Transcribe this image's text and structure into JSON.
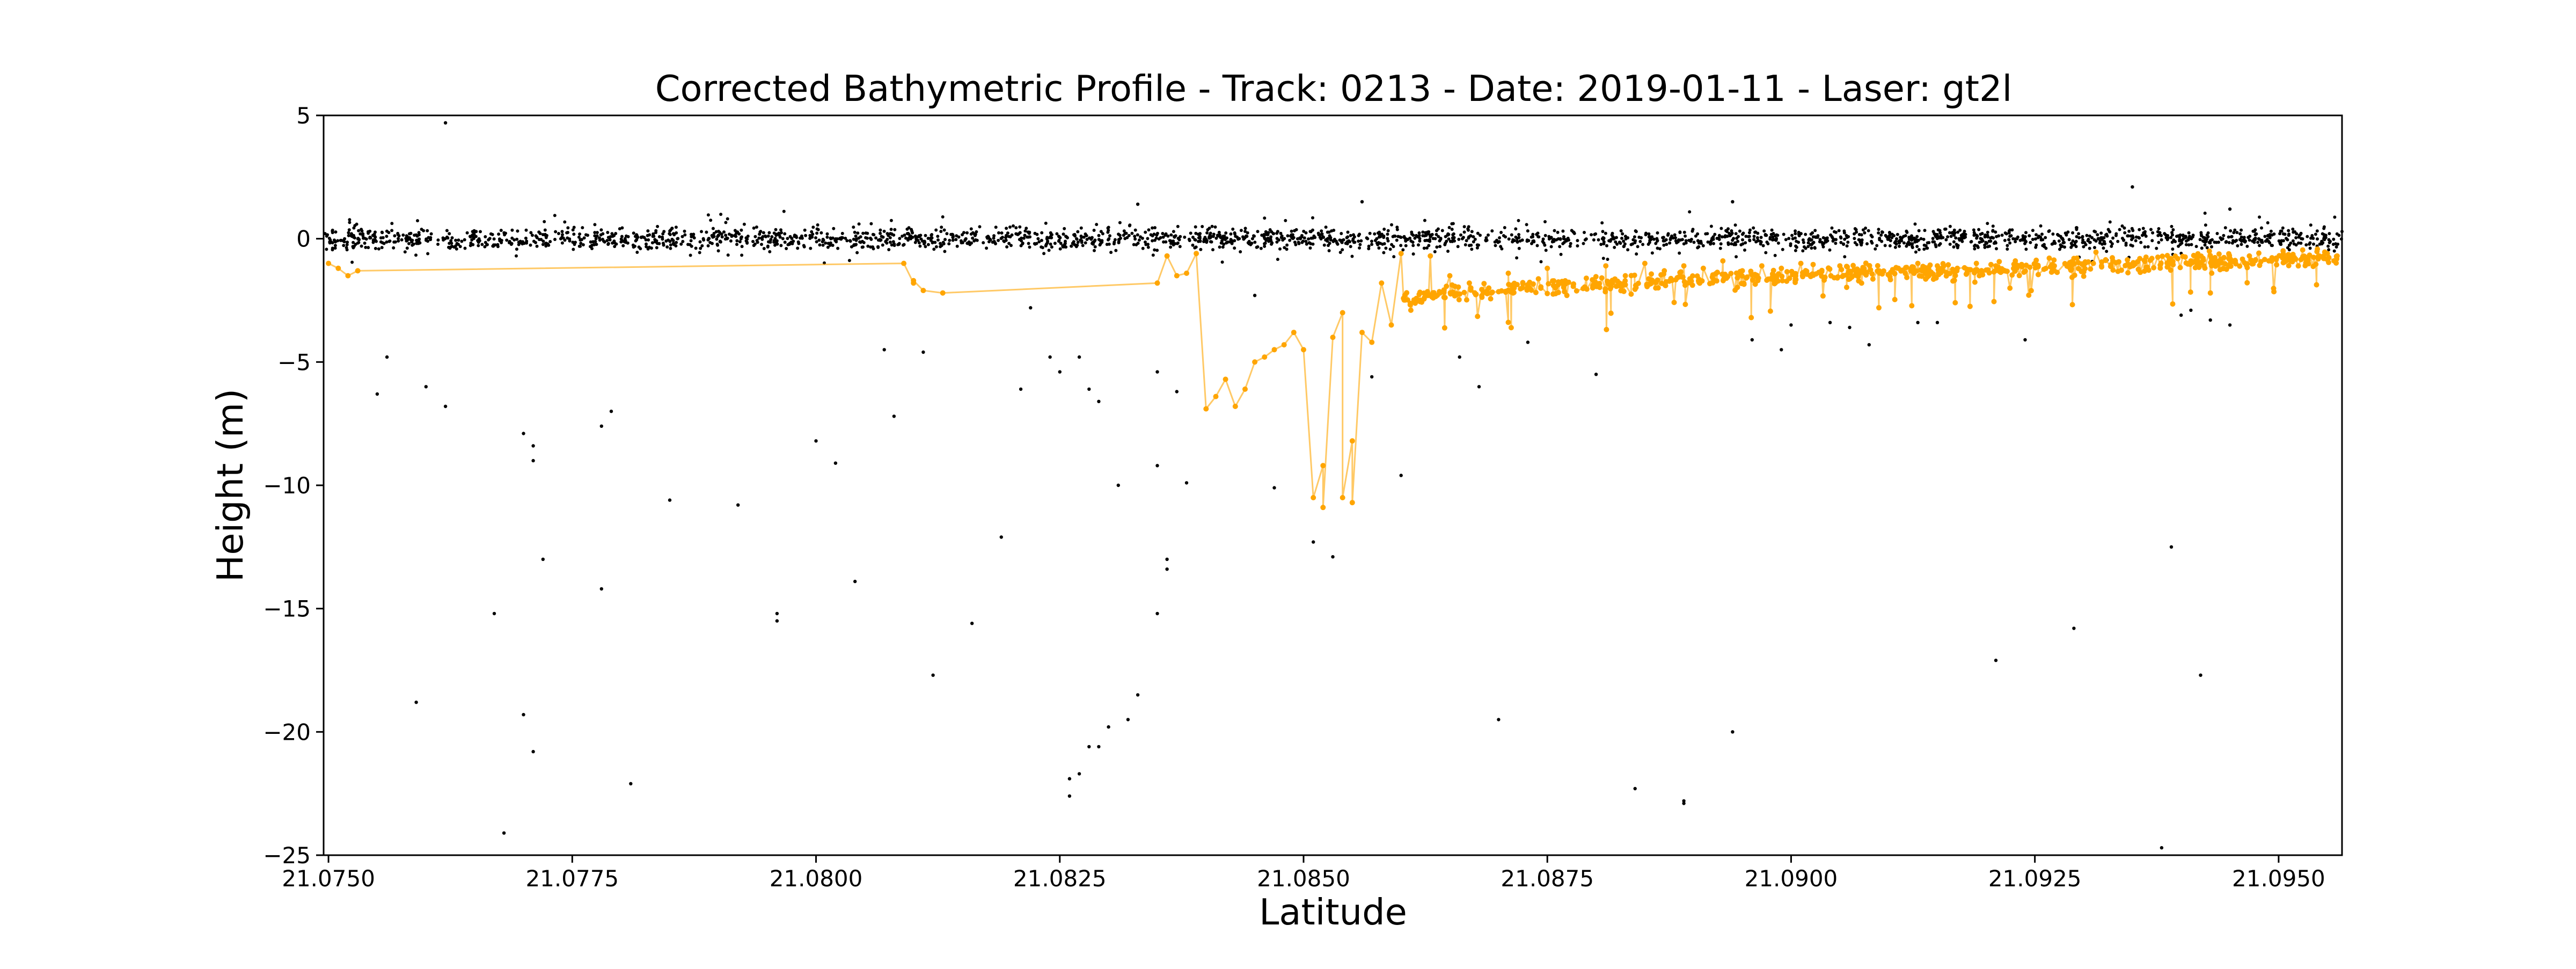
{
  "chart_data": {
    "type": "scatter",
    "title": "Corrected Bathymetric Profile - Track: 0213 - Date: 2019-01-11 - Laser: gt2l",
    "xlabel": "Latitude",
    "ylabel": "Height (m)",
    "xlim": [
      21.07495,
      21.09565
    ],
    "ylim": [
      -25,
      5
    ],
    "grid": false,
    "legend": "none",
    "x_ticks": [
      "21.0750",
      "21.0775",
      "21.0800",
      "21.0825",
      "21.0850",
      "21.0875",
      "21.0900",
      "21.0925",
      "21.0950"
    ],
    "x_tick_values": [
      21.075,
      21.0775,
      21.08,
      21.0825,
      21.085,
      21.0875,
      21.09,
      21.0925,
      21.095
    ],
    "y_ticks": [
      "5",
      "0",
      "−5",
      "−10",
      "−15",
      "−20",
      "−25"
    ],
    "y_tick_values": [
      5,
      0,
      -5,
      -10,
      -15,
      -20,
      -25
    ],
    "series": [
      {
        "kind": "photon-cloud",
        "color": "#000000",
        "surface_band": {
          "x_range": [
            21.07495,
            21.09565
          ],
          "center": 0.0,
          "spread": 0.35
        },
        "outliers": [
          [
            21.0762,
            4.7
          ],
          [
            21.0756,
            -4.8
          ],
          [
            21.0755,
            -6.3
          ],
          [
            21.076,
            -6.0
          ],
          [
            21.0762,
            -6.8
          ],
          [
            21.0759,
            -18.8
          ],
          [
            21.0768,
            -24.1
          ],
          [
            21.0767,
            -15.2
          ],
          [
            21.077,
            -7.9
          ],
          [
            21.0771,
            -9.0
          ],
          [
            21.0771,
            -8.4
          ],
          [
            21.077,
            -19.3
          ],
          [
            21.0771,
            -20.8
          ],
          [
            21.0772,
            -13.0
          ],
          [
            21.0778,
            -14.2
          ],
          [
            21.0779,
            -7.0
          ],
          [
            21.0778,
            -7.6
          ],
          [
            21.0781,
            -22.1
          ],
          [
            21.0785,
            -10.6
          ],
          [
            21.0792,
            -10.8
          ],
          [
            21.0796,
            -15.5
          ],
          [
            21.0796,
            -15.2
          ],
          [
            21.08,
            -8.2
          ],
          [
            21.0802,
            -9.1
          ],
          [
            21.0804,
            -13.9
          ],
          [
            21.0807,
            -4.5
          ],
          [
            21.0808,
            -7.2
          ],
          [
            21.0811,
            -4.6
          ],
          [
            21.0812,
            -17.7
          ],
          [
            21.0816,
            -15.6
          ],
          [
            21.0819,
            -12.1
          ],
          [
            21.0821,
            -6.1
          ],
          [
            21.0822,
            -2.8
          ],
          [
            21.0824,
            -4.8
          ],
          [
            21.0825,
            -5.4
          ],
          [
            21.0827,
            -4.8
          ],
          [
            21.0828,
            -6.1
          ],
          [
            21.0829,
            -6.6
          ],
          [
            21.0826,
            -22.6
          ],
          [
            21.0826,
            -21.9
          ],
          [
            21.0827,
            -21.7
          ],
          [
            21.0828,
            -20.6
          ],
          [
            21.0829,
            -20.6
          ],
          [
            21.083,
            -19.8
          ],
          [
            21.0831,
            -10.0
          ],
          [
            21.0832,
            -19.5
          ],
          [
            21.0833,
            -18.5
          ],
          [
            21.0835,
            -15.2
          ],
          [
            21.0836,
            -13.0
          ],
          [
            21.0836,
            -13.4
          ],
          [
            21.0835,
            -9.2
          ],
          [
            21.0835,
            -5.4
          ],
          [
            21.0837,
            -6.2
          ],
          [
            21.0838,
            -9.9
          ],
          [
            21.0845,
            -2.3
          ],
          [
            21.0847,
            -10.1
          ],
          [
            21.0851,
            -12.3
          ],
          [
            21.0853,
            -12.9
          ],
          [
            21.0857,
            -5.6
          ],
          [
            21.086,
            -9.6
          ],
          [
            21.0866,
            -4.8
          ],
          [
            21.0868,
            -6.0
          ],
          [
            21.087,
            -19.5
          ],
          [
            21.0873,
            -4.2
          ],
          [
            21.088,
            -5.5
          ],
          [
            21.0884,
            -22.3
          ],
          [
            21.0889,
            -22.9
          ],
          [
            21.0889,
            -22.8
          ],
          [
            21.0894,
            -20.0
          ],
          [
            21.0896,
            -4.1
          ],
          [
            21.0899,
            -4.5
          ],
          [
            21.09,
            -3.5
          ],
          [
            21.0904,
            -3.4
          ],
          [
            21.0906,
            -3.6
          ],
          [
            21.0908,
            -4.3
          ],
          [
            21.0913,
            -3.4
          ],
          [
            21.0915,
            -3.4
          ],
          [
            21.0921,
            -17.1
          ],
          [
            21.0924,
            -4.1
          ],
          [
            21.0929,
            -15.8
          ],
          [
            21.0935,
            2.1
          ],
          [
            21.0939,
            -12.5
          ],
          [
            21.0942,
            -17.7
          ],
          [
            21.094,
            -3.1
          ],
          [
            21.0941,
            -2.9
          ],
          [
            21.0943,
            -3.3
          ],
          [
            21.0945,
            -3.5
          ],
          [
            21.0938,
            -24.7
          ],
          [
            21.0894,
            1.5
          ],
          [
            21.0833,
            1.4
          ],
          [
            21.0856,
            1.5
          ],
          [
            21.0945,
            1.2
          ]
        ]
      },
      {
        "kind": "bathymetry",
        "color": "#FFA500",
        "points": [
          [
            21.075,
            -1.0
          ],
          [
            21.0751,
            -1.2
          ],
          [
            21.0752,
            -1.5
          ],
          [
            21.0753,
            -1.3
          ],
          [
            21.0809,
            -1.0
          ],
          [
            21.081,
            -1.8
          ],
          [
            21.0811,
            -2.1
          ],
          [
            21.081,
            -1.7
          ],
          [
            21.0813,
            -2.2
          ],
          [
            21.0835,
            -1.8
          ],
          [
            21.0836,
            -0.7
          ],
          [
            21.0837,
            -1.5
          ],
          [
            21.0838,
            -1.4
          ],
          [
            21.0839,
            -0.6
          ],
          [
            21.084,
            -6.9
          ],
          [
            21.0841,
            -6.4
          ],
          [
            21.0842,
            -5.7
          ],
          [
            21.0843,
            -6.8
          ],
          [
            21.0844,
            -6.1
          ],
          [
            21.0845,
            -5.0
          ],
          [
            21.0846,
            -4.8
          ],
          [
            21.0847,
            -4.5
          ],
          [
            21.0848,
            -4.3
          ],
          [
            21.0849,
            -3.8
          ],
          [
            21.085,
            -4.5
          ],
          [
            21.0851,
            -10.5
          ],
          [
            21.0852,
            -9.2
          ],
          [
            21.0852,
            -10.9
          ],
          [
            21.0853,
            -4.0
          ],
          [
            21.0854,
            -3.0
          ],
          [
            21.0854,
            -10.5
          ],
          [
            21.0855,
            -8.2
          ],
          [
            21.0855,
            -10.7
          ],
          [
            21.0856,
            -3.8
          ],
          [
            21.0857,
            -4.2
          ],
          [
            21.0858,
            -1.8
          ],
          [
            21.0859,
            -3.5
          ],
          [
            21.086,
            -0.6
          ],
          [
            21.0861,
            -2.9
          ],
          [
            21.0862,
            -2.5
          ],
          [
            21.0863,
            -0.7
          ],
          [
            21.0864,
            -2.2
          ],
          [
            21.0865,
            -1.5
          ],
          [
            21.0867,
            -1.8
          ],
          [
            21.0869,
            -2.0
          ],
          [
            21.0871,
            -1.4
          ],
          [
            21.0873,
            -1.9
          ],
          [
            21.0875,
            -1.2
          ],
          [
            21.0877,
            -2.3
          ],
          [
            21.0879,
            -1.6
          ],
          [
            21.0881,
            -1.1
          ],
          [
            21.0883,
            -1.5
          ],
          [
            21.0885,
            -1.0
          ],
          [
            21.0887,
            -1.3
          ],
          [
            21.0889,
            -1.1
          ],
          [
            21.0891,
            -1.2
          ],
          [
            21.0893,
            -0.9
          ],
          [
            21.0895,
            -1.3
          ],
          [
            21.0897,
            -1.1
          ],
          [
            21.0899,
            -1.2
          ],
          [
            21.0901,
            -1.0
          ],
          [
            21.0903,
            -1.4
          ],
          [
            21.0905,
            -1.1
          ],
          [
            21.0907,
            -1.3
          ],
          [
            21.0909,
            -2.8
          ],
          [
            21.0911,
            -1.2
          ],
          [
            21.0913,
            -1.0
          ],
          [
            21.0915,
            -1.1
          ],
          [
            21.0917,
            -1.3
          ],
          [
            21.0919,
            -1.0
          ],
          [
            21.0921,
            -1.1
          ],
          [
            21.0923,
            -0.9
          ],
          [
            21.0925,
            -1.0
          ],
          [
            21.0927,
            -1.1
          ],
          [
            21.0929,
            -0.8
          ],
          [
            21.0931,
            -1.0
          ],
          [
            21.0933,
            -0.9
          ],
          [
            21.0935,
            -1.1
          ],
          [
            21.0937,
            -0.8
          ],
          [
            21.0939,
            -1.0
          ],
          [
            21.0941,
            -0.9
          ],
          [
            21.0943,
            -2.2
          ],
          [
            21.0945,
            -0.8
          ],
          [
            21.0947,
            -0.7
          ],
          [
            21.0949,
            -0.9
          ],
          [
            21.0951,
            -0.7
          ],
          [
            21.0953,
            -0.8
          ],
          [
            21.0955,
            -0.6
          ],
          [
            21.0956,
            -0.7
          ]
        ],
        "dense_segment": {
          "x_range": [
            21.086,
            21.0956
          ],
          "y_start": -2.5,
          "y_end": -0.8,
          "spread": 0.35
        }
      }
    ]
  }
}
